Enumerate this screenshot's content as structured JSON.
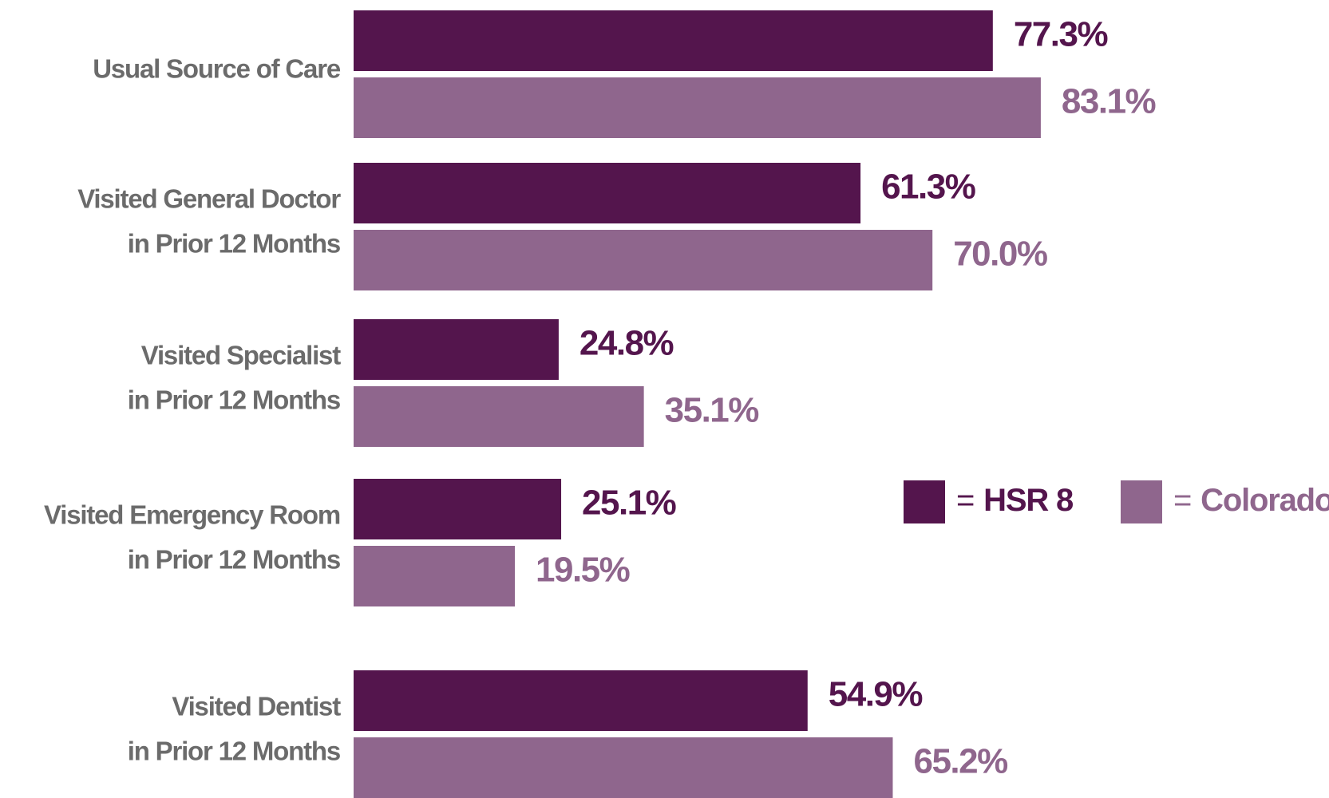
{
  "chart_data": {
    "type": "bar",
    "orientation": "horizontal",
    "categories": [
      [
        "Usual Source of Care"
      ],
      [
        "Visited General Doctor",
        "in Prior 12 Months"
      ],
      [
        "Visited Specialist",
        "in Prior 12 Months"
      ],
      [
        "Visited Emergency Room",
        "in Prior 12 Months"
      ],
      [
        "Visited Dentist",
        "in Prior 12 Months"
      ]
    ],
    "series": [
      {
        "name": "HSR 8",
        "color": "#54154d",
        "values": [
          77.3,
          61.3,
          24.8,
          25.1,
          54.9
        ],
        "value_labels": [
          "77.3%",
          "61.3%",
          "24.8%",
          "25.1%",
          "54.9%"
        ]
      },
      {
        "name": "Colorado",
        "color": "#8f668d",
        "values": [
          83.1,
          70.0,
          35.1,
          19.5,
          65.2
        ],
        "value_labels": [
          "83.1%",
          "70.0%",
          "35.1%",
          "19.5%",
          "65.2%"
        ]
      }
    ],
    "xlim": [
      0,
      100
    ],
    "legend_separator": "=",
    "legend": "right"
  }
}
